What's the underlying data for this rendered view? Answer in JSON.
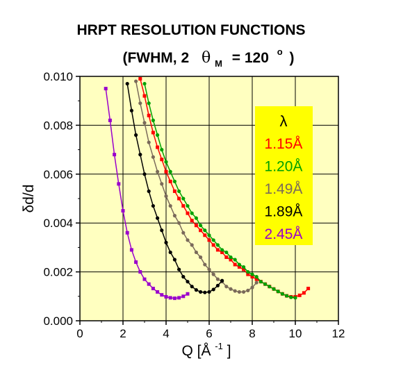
{
  "chart_data": {
    "type": "line",
    "title": "HRPT RESOLUTION FUNCTIONS",
    "subtitle": {
      "prefix": "(FWHM, 2",
      "theta": "θ",
      "sub": "M",
      "middle": "= 120",
      "sup": "o",
      "suffix": ")"
    },
    "xlabel": {
      "main": "Q [Å",
      "sup": "-1",
      "end": "]"
    },
    "ylabel": "δd/d",
    "xlim": [
      0,
      12
    ],
    "ylim": [
      0,
      0.01
    ],
    "xticks": [
      "0",
      "2",
      "4",
      "6",
      "8",
      "10",
      "12"
    ],
    "yticks": [
      "0.000",
      "0.002",
      "0.004",
      "0.006",
      "0.008",
      "0.010"
    ],
    "grid": true,
    "legend": {
      "title": "λ",
      "placement": "right",
      "background": "#ffff00"
    },
    "background": "#ffffc0",
    "series": [
      {
        "name": "1.15Å",
        "color": "#ff0000",
        "marker": "square",
        "x": [
          2.8,
          3.0,
          3.2,
          3.4,
          3.6,
          3.8,
          4.0,
          4.2,
          4.4,
          4.6,
          4.8,
          5.0,
          5.2,
          5.4,
          5.6,
          5.8,
          6.0,
          6.2,
          6.4,
          6.6,
          6.8,
          7.0,
          7.2,
          7.4,
          7.6,
          7.8,
          8.0,
          8.2,
          8.4,
          8.6,
          8.8,
          9.0,
          9.2,
          9.4,
          9.6,
          9.8,
          10.0,
          10.2,
          10.4,
          10.6
        ],
        "y": [
          0.0099,
          0.0092,
          0.0084,
          0.0077,
          0.0071,
          0.0066,
          0.0061,
          0.0057,
          0.0053,
          0.005,
          0.0047,
          0.0044,
          0.0041,
          0.0039,
          0.0037,
          0.0035,
          0.0033,
          0.0031,
          0.0029,
          0.0028,
          0.0026,
          0.0025,
          0.0023,
          0.0022,
          0.0021,
          0.0019,
          0.0018,
          0.0017,
          0.0016,
          0.0015,
          0.0014,
          0.0013,
          0.0012,
          0.0011,
          0.00102,
          0.00098,
          0.00098,
          0.00104,
          0.00114,
          0.00132
        ]
      },
      {
        "name": "1.20Å",
        "color": "#00a000",
        "marker": "circle",
        "x": [
          3.0,
          3.2,
          3.4,
          3.6,
          3.8,
          4.0,
          4.2,
          4.4,
          4.6,
          4.8,
          5.0,
          5.2,
          5.4,
          5.6,
          5.8,
          6.0,
          6.2,
          6.4,
          6.6,
          6.8,
          7.0,
          7.2,
          7.4,
          7.6,
          7.8,
          8.0,
          8.2,
          8.4,
          8.6,
          8.8,
          9.0,
          9.2,
          9.4,
          9.6,
          9.8,
          10.0
        ],
        "y": [
          0.0097,
          0.0089,
          0.0082,
          0.0076,
          0.007,
          0.0065,
          0.0061,
          0.0057,
          0.0053,
          0.005,
          0.0047,
          0.0044,
          0.0042,
          0.0039,
          0.0037,
          0.0035,
          0.0033,
          0.0031,
          0.0029,
          0.0028,
          0.0026,
          0.0025,
          0.0023,
          0.0022,
          0.002,
          0.0019,
          0.0018,
          0.0016,
          0.0015,
          0.0014,
          0.0013,
          0.0012,
          0.0011,
          0.00102,
          0.00096,
          0.00094
        ]
      },
      {
        "name": "1.49Å",
        "color": "#7a6a5a",
        "marker": "circle",
        "x": [
          2.6,
          2.8,
          3.0,
          3.2,
          3.4,
          3.6,
          3.8,
          4.0,
          4.2,
          4.4,
          4.6,
          4.8,
          5.0,
          5.2,
          5.4,
          5.6,
          5.8,
          6.0,
          6.2,
          6.4,
          6.6,
          6.8,
          7.0,
          7.2,
          7.4,
          7.6,
          7.8,
          8.0,
          8.2
        ],
        "y": [
          0.0098,
          0.0089,
          0.0081,
          0.0073,
          0.0067,
          0.0061,
          0.0056,
          0.0051,
          0.0047,
          0.0043,
          0.004,
          0.0036,
          0.0033,
          0.0031,
          0.0028,
          0.0026,
          0.0023,
          0.0021,
          0.0019,
          0.0017,
          0.0016,
          0.0014,
          0.0013,
          0.00122,
          0.00118,
          0.00118,
          0.00124,
          0.00136,
          0.00156
        ]
      },
      {
        "name": "1.89Å",
        "color": "#000000",
        "marker": "circle",
        "x": [
          2.2,
          2.4,
          2.6,
          2.8,
          3.0,
          3.2,
          3.4,
          3.6,
          3.8,
          4.0,
          4.2,
          4.4,
          4.6,
          4.8,
          5.0,
          5.2,
          5.4,
          5.6,
          5.8,
          6.0,
          6.2,
          6.4,
          6.6
        ],
        "y": [
          0.0097,
          0.0086,
          0.0076,
          0.0068,
          0.006,
          0.0053,
          0.0047,
          0.0042,
          0.0037,
          0.0032,
          0.0028,
          0.0025,
          0.0021,
          0.0018,
          0.0016,
          0.0014,
          0.00126,
          0.00118,
          0.00116,
          0.00118,
          0.00128,
          0.00144,
          0.00164
        ]
      },
      {
        "name": "2.45Å",
        "color": "#9900cc",
        "marker": "square",
        "x": [
          1.2,
          1.4,
          1.6,
          1.8,
          2.0,
          2.2,
          2.4,
          2.6,
          2.8,
          3.0,
          3.2,
          3.4,
          3.6,
          3.8,
          4.0,
          4.2,
          4.4,
          4.6,
          4.8,
          5.0
        ],
        "y": [
          0.0095,
          0.0082,
          0.0068,
          0.0056,
          0.0045,
          0.0036,
          0.0029,
          0.0024,
          0.002,
          0.0017,
          0.0015,
          0.00132,
          0.00118,
          0.00106,
          0.00098,
          0.00094,
          0.00092,
          0.00094,
          0.001,
          0.0011
        ]
      }
    ]
  }
}
